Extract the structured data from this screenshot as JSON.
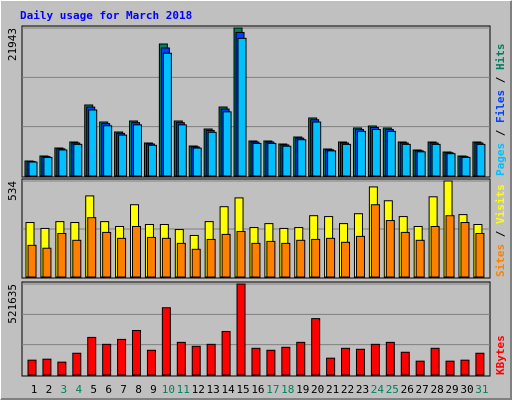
{
  "chart_data": [
    {
      "type": "bar",
      "title": "Daily usage for March 2018",
      "ylim": [
        0,
        21943
      ],
      "yticks": [
        21943
      ],
      "legend_separator": " / ",
      "series": [
        {
          "name": "Hits",
          "color": "#00805c",
          "values": [
            2224,
            2965,
            4151,
            5041,
            10527,
            8006,
            6523,
            8155,
            4893,
            19571,
            8155,
            4448,
            6968,
            10230,
            21943,
            5190,
            5190,
            4744,
            5782,
            8600,
            4003,
            5041,
            7117,
            7413,
            7117,
            5041,
            3855,
            5041,
            3558,
            2965,
            5041
          ]
        },
        {
          "name": "Files",
          "color": "#0040ff",
          "values": [
            2157,
            2876,
            4026,
            4890,
            10211,
            7766,
            6327,
            7910,
            4746,
            18984,
            7910,
            4315,
            6759,
            9923,
            21285,
            5034,
            5034,
            4602,
            5609,
            8342,
            3883,
            4890,
            6903,
            7191,
            6903,
            4890,
            3739,
            4890,
            3451,
            2876,
            4890
          ]
        },
        {
          "name": "Pages",
          "color": "#00c0ff",
          "values": [
            2068,
            2757,
            3860,
            4688,
            9790,
            7446,
            6066,
            7584,
            4550,
            18201,
            7584,
            4137,
            6480,
            9514,
            20407,
            4827,
            4827,
            4412,
            5377,
            7998,
            3723,
            4688,
            6619,
            6894,
            6619,
            4688,
            3585,
            4688,
            3309,
            2757,
            4688
          ]
        }
      ]
    },
    {
      "type": "bar",
      "ylim": [
        0,
        534
      ],
      "yticks": [
        534
      ],
      "legend_separator": " / ",
      "series": [
        {
          "name": "Visits",
          "color": "#ffff00",
          "values": [
            303,
            270,
            308,
            303,
            451,
            308,
            281,
            402,
            292,
            292,
            264,
            231,
            308,
            391,
            440,
            275,
            297,
            270,
            275,
            341,
            336,
            297,
            352,
            501,
            424,
            336,
            281,
            446,
            534,
            347,
            292
          ]
        },
        {
          "name": "Sites",
          "color": "#ff8000",
          "values": [
            176,
            160,
            242,
            204,
            330,
            248,
            215,
            281,
            220,
            215,
            187,
            154,
            209,
            237,
            253,
            187,
            198,
            187,
            204,
            209,
            215,
            193,
            226,
            402,
            314,
            248,
            204,
            281,
            341,
            303,
            242
          ]
        }
      ]
    },
    {
      "type": "bar",
      "ylim": [
        0,
        521635
      ],
      "yticks": [
        521635
      ],
      "categories": [
        "1",
        "2",
        "3",
        "4",
        "5",
        "6",
        "7",
        "8",
        "9",
        "10",
        "11",
        "12",
        "13",
        "14",
        "15",
        "16",
        "17",
        "18",
        "19",
        "20",
        "21",
        "22",
        "23",
        "24",
        "25",
        "26",
        "27",
        "28",
        "29",
        "30",
        "31"
      ],
      "category_colors": [
        "#000000",
        "#000000",
        "#00805c",
        "#00805c",
        "#000000",
        "#000000",
        "#000000",
        "#000000",
        "#000000",
        "#00805c",
        "#00805c",
        "#000000",
        "#000000",
        "#000000",
        "#000000",
        "#000000",
        "#00805c",
        "#00805c",
        "#000000",
        "#000000",
        "#000000",
        "#000000",
        "#000000",
        "#00805c",
        "#00805c",
        "#000000",
        "#000000",
        "#000000",
        "#000000",
        "#000000",
        "#00805c"
      ],
      "series": [
        {
          "name": "KBytes",
          "color": "#ff0000",
          "values": [
            85049,
            90719,
            73709,
            124739,
            215459,
            175769,
            204119,
            255149,
            141749,
            385559,
            187109,
            164429,
            175769,
            249479,
            521635,
            153089,
            141749,
            158759,
            187109,
            323189,
            96389,
            153089,
            147419,
            175769,
            187109,
            130409,
            79379,
            153089,
            79379,
            85049,
            124739
          ]
        }
      ]
    }
  ]
}
